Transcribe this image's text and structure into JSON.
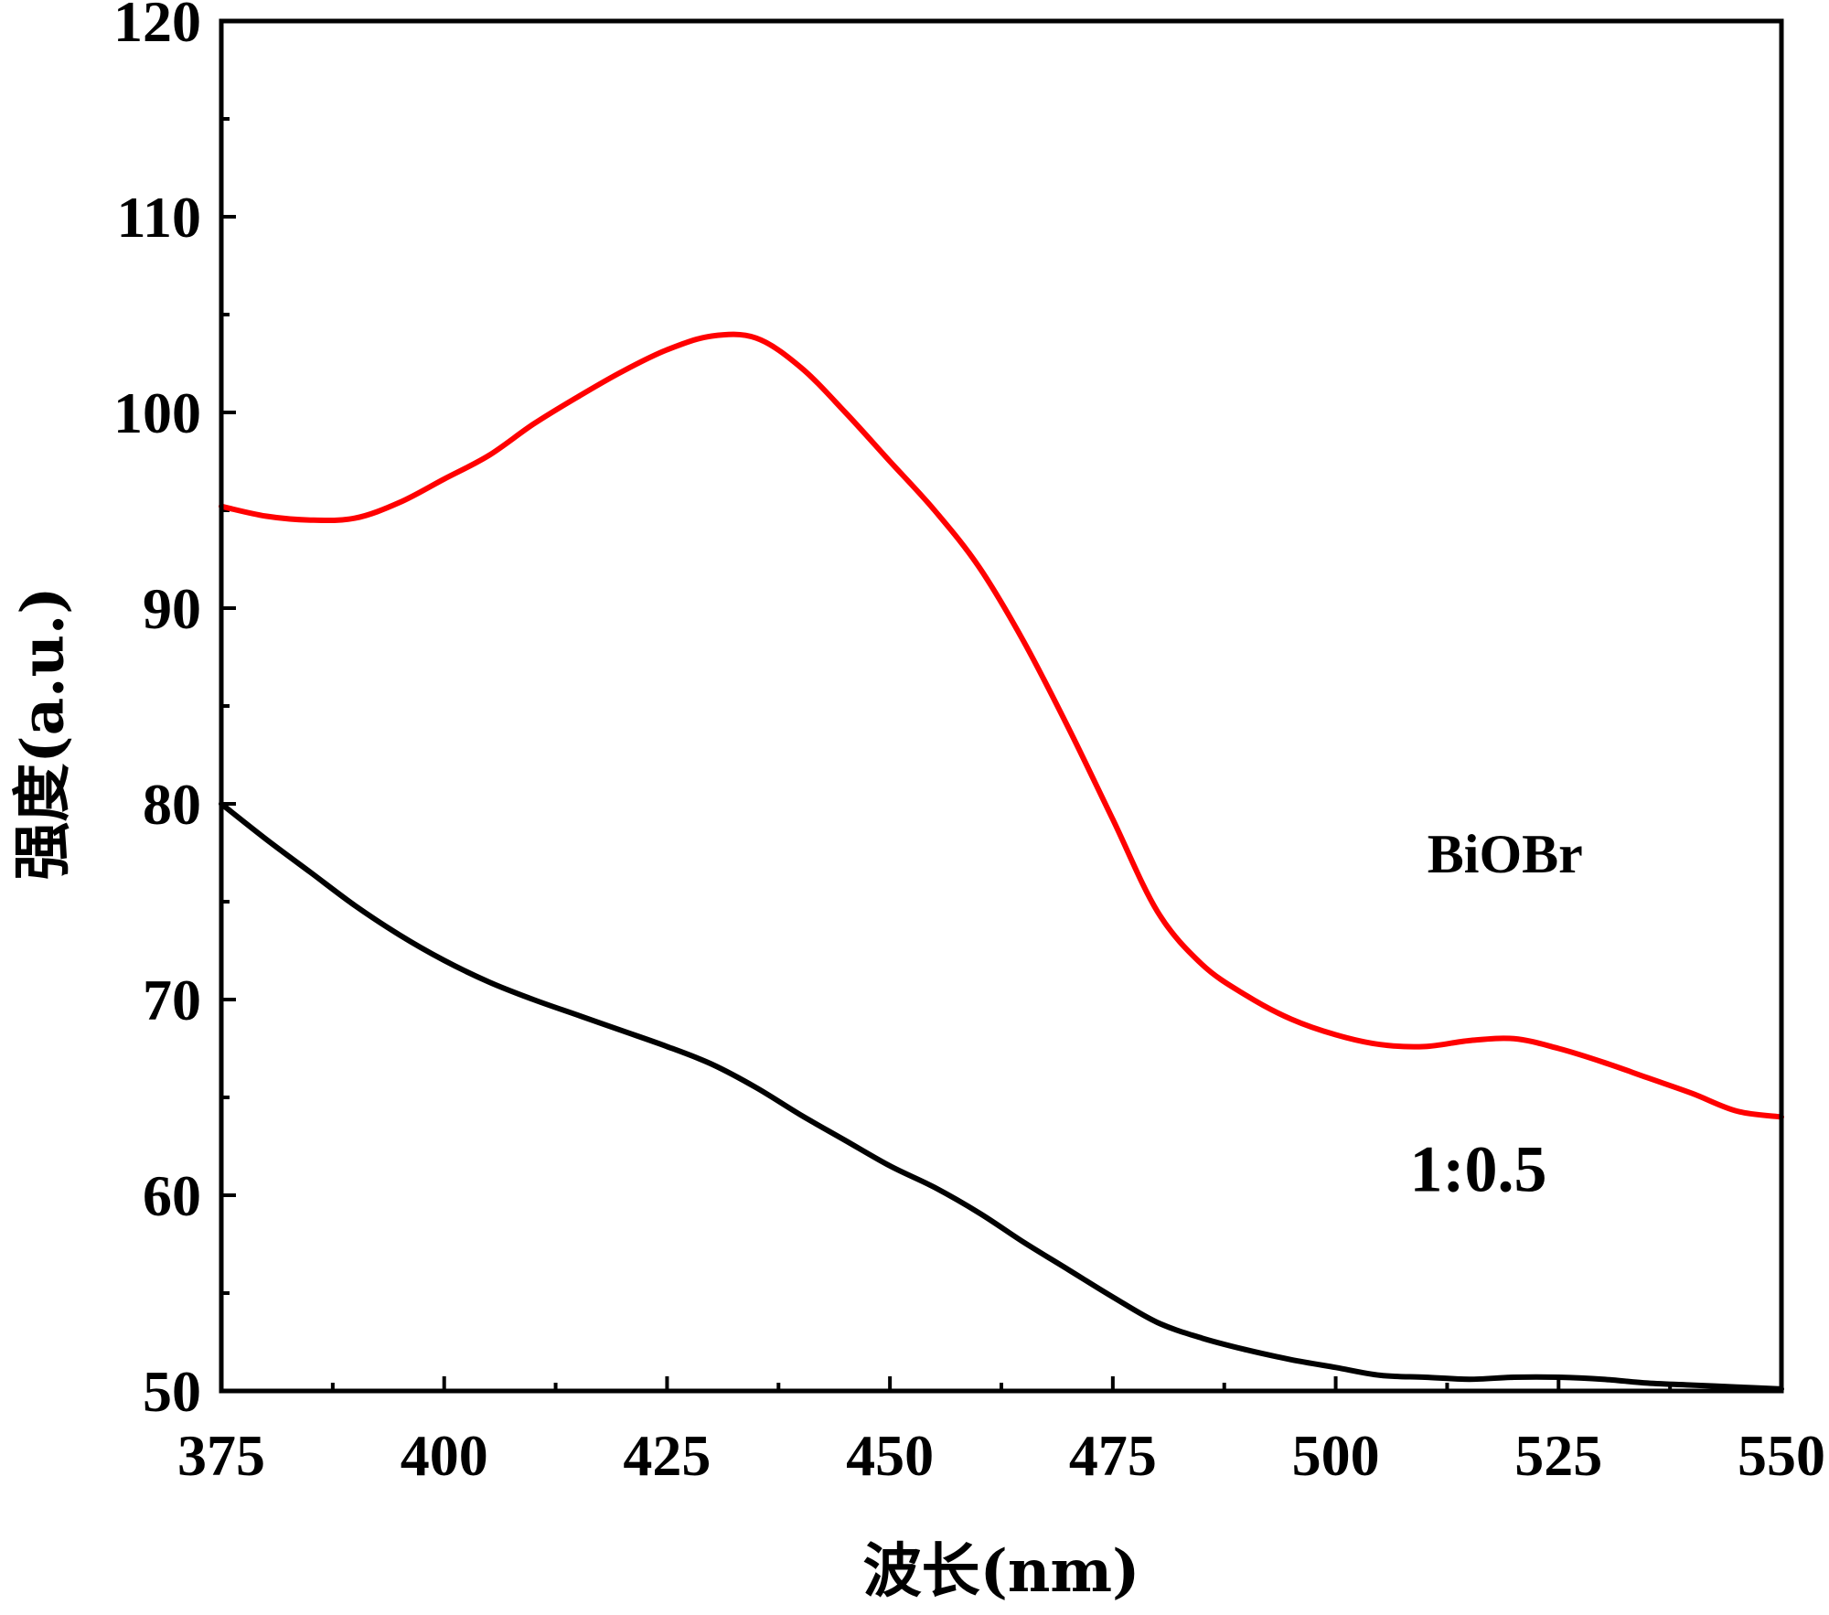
{
  "chart_data": {
    "type": "line",
    "title": "",
    "xlabel": "波长(nm)",
    "ylabel": "强度(a.u.)",
    "xlim": [
      375,
      550
    ],
    "ylim": [
      50,
      120
    ],
    "xticks": [
      375,
      400,
      425,
      450,
      475,
      500,
      525,
      550
    ],
    "yticks": [
      50,
      60,
      70,
      80,
      90,
      100,
      110,
      120
    ],
    "x_minor_step": 12.5,
    "y_minor_step": 5,
    "grid": false,
    "legend": "none",
    "series": [
      {
        "name": "BiOBr",
        "color": "#ff0000",
        "x": [
          375,
          380,
          385,
          390,
          395,
          400,
          405,
          410,
          415,
          420,
          425,
          430,
          435,
          440,
          445,
          450,
          455,
          460,
          465,
          470,
          475,
          480,
          485,
          490,
          495,
          500,
          505,
          510,
          515,
          520,
          525,
          530,
          535,
          540,
          545,
          550
        ],
        "values": [
          95.2,
          94.7,
          94.5,
          94.6,
          95.4,
          96.6,
          97.8,
          99.4,
          100.8,
          102.1,
          103.2,
          103.9,
          103.8,
          102.3,
          100.0,
          97.5,
          95.0,
          92.1,
          88.3,
          83.9,
          79.2,
          74.5,
          71.8,
          70.2,
          69.0,
          68.2,
          67.7,
          67.6,
          67.9,
          68.0,
          67.5,
          66.8,
          66.0,
          65.2,
          64.3,
          64.0
        ]
      },
      {
        "name": "1:0.5",
        "color": "#000000",
        "x": [
          375,
          380,
          385,
          390,
          395,
          400,
          405,
          410,
          415,
          420,
          425,
          430,
          435,
          440,
          445,
          450,
          455,
          460,
          465,
          470,
          475,
          480,
          485,
          490,
          495,
          500,
          505,
          510,
          515,
          520,
          525,
          530,
          535,
          540,
          545,
          550
        ],
        "values": [
          80.0,
          78.2,
          76.5,
          74.8,
          73.3,
          72.0,
          70.9,
          70.0,
          69.2,
          68.4,
          67.6,
          66.7,
          65.5,
          64.1,
          62.8,
          61.5,
          60.4,
          59.1,
          57.6,
          56.2,
          54.8,
          53.5,
          52.7,
          52.1,
          51.6,
          51.2,
          50.8,
          50.7,
          50.6,
          50.7,
          50.7,
          50.6,
          50.4,
          50.3,
          50.2,
          50.1
        ]
      }
    ],
    "annotations": [
      {
        "text": "BiOBr",
        "x": 519,
        "y": 76.5
      },
      {
        "text": "1:0.5",
        "x": 516,
        "y": 60.2
      }
    ]
  }
}
